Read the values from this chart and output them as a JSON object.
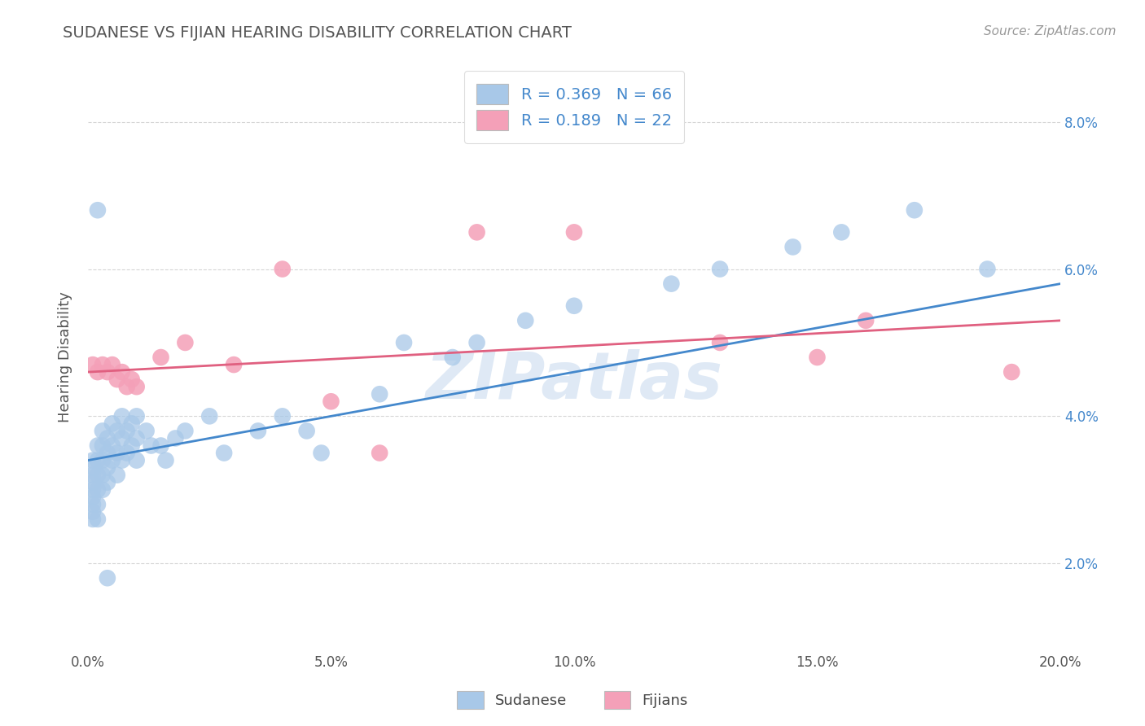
{
  "title": "SUDANESE VS FIJIAN HEARING DISABILITY CORRELATION CHART",
  "source": "Source: ZipAtlas.com",
  "ylabel": "Hearing Disability",
  "xlim": [
    0.0,
    0.2
  ],
  "ylim": [
    0.008,
    0.088
  ],
  "xticks": [
    0.0,
    0.05,
    0.1,
    0.15,
    0.2
  ],
  "xtick_labels": [
    "0.0%",
    "5.0%",
    "10.0%",
    "15.0%",
    "20.0%"
  ],
  "yticks": [
    0.02,
    0.04,
    0.06,
    0.08
  ],
  "ytick_labels": [
    "2.0%",
    "4.0%",
    "6.0%",
    "8.0%"
  ],
  "sudanese_color": "#a8c8e8",
  "fijian_color": "#f4a0b8",
  "trend_blue": "#4488cc",
  "trend_pink": "#e06080",
  "tick_color": "#4488cc",
  "watermark": "ZIPatlas",
  "background_color": "#ffffff",
  "grid_color": "#cccccc",
  "sudanese_x": [
    0.001,
    0.001,
    0.001,
    0.001,
    0.001,
    0.001,
    0.001,
    0.001,
    0.001,
    0.002,
    0.002,
    0.002,
    0.002,
    0.002,
    0.002,
    0.003,
    0.003,
    0.003,
    0.003,
    0.003,
    0.004,
    0.004,
    0.004,
    0.004,
    0.005,
    0.005,
    0.005,
    0.006,
    0.006,
    0.006,
    0.007,
    0.007,
    0.007,
    0.008,
    0.008,
    0.009,
    0.009,
    0.01,
    0.01,
    0.01,
    0.012,
    0.013,
    0.015,
    0.016,
    0.018,
    0.02,
    0.025,
    0.028,
    0.035,
    0.04,
    0.045,
    0.048,
    0.06,
    0.065,
    0.075,
    0.08,
    0.09,
    0.1,
    0.12,
    0.13,
    0.145,
    0.155,
    0.17,
    0.185,
    0.002,
    0.004
  ],
  "sudanese_y": [
    0.034,
    0.033,
    0.032,
    0.031,
    0.03,
    0.029,
    0.028,
    0.027,
    0.026,
    0.036,
    0.034,
    0.032,
    0.03,
    0.028,
    0.026,
    0.038,
    0.036,
    0.034,
    0.032,
    0.03,
    0.037,
    0.035,
    0.033,
    0.031,
    0.039,
    0.036,
    0.034,
    0.038,
    0.035,
    0.032,
    0.04,
    0.037,
    0.034,
    0.038,
    0.035,
    0.039,
    0.036,
    0.04,
    0.037,
    0.034,
    0.038,
    0.036,
    0.036,
    0.034,
    0.037,
    0.038,
    0.04,
    0.035,
    0.038,
    0.04,
    0.038,
    0.035,
    0.043,
    0.05,
    0.048,
    0.05,
    0.053,
    0.055,
    0.058,
    0.06,
    0.063,
    0.065,
    0.068,
    0.06,
    0.068,
    0.018
  ],
  "fijian_x": [
    0.001,
    0.002,
    0.003,
    0.004,
    0.005,
    0.006,
    0.007,
    0.008,
    0.009,
    0.01,
    0.015,
    0.02,
    0.03,
    0.04,
    0.05,
    0.06,
    0.08,
    0.1,
    0.13,
    0.15,
    0.16,
    0.19
  ],
  "fijian_y": [
    0.047,
    0.046,
    0.047,
    0.046,
    0.047,
    0.045,
    0.046,
    0.044,
    0.045,
    0.044,
    0.048,
    0.05,
    0.047,
    0.06,
    0.042,
    0.035,
    0.065,
    0.065,
    0.05,
    0.048,
    0.053,
    0.046
  ],
  "legend_text_blue": "R = 0.369   N = 66",
  "legend_text_pink": "R = 0.189   N = 22"
}
